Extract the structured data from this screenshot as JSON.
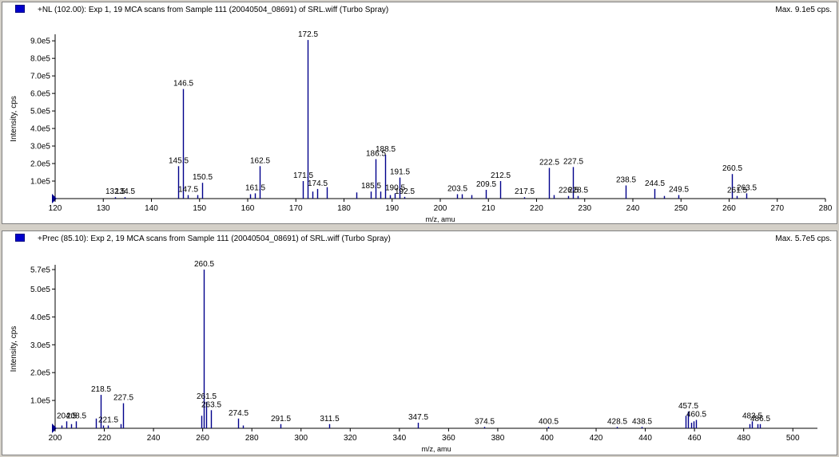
{
  "panels": [
    {
      "title": "+NL (102.00): Exp 1, 19 MCA scans from Sample 111 (20040504_08691) of SRL.wiff (Turbo Spray)",
      "max_label": "Max. 9.1e5 cps."
    },
    {
      "title": "+Prec (85.10): Exp 2, 19 MCA scans from Sample 111 (20040504_08691) of SRL.wiff (Turbo Spray)",
      "max_label": "Max. 5.7e5 cps."
    }
  ],
  "colors": {
    "series": "#00008b",
    "window_bg": "#d4d0c8"
  },
  "chart_data": [
    {
      "type": "bar",
      "xlabel": "m/z, amu",
      "ylabel": "Intensity, cps",
      "xlim": [
        120,
        280
      ],
      "ylim": [
        0,
        910000
      ],
      "xticks": [
        "120",
        "130",
        "140",
        "150",
        "160",
        "170",
        "180",
        "190",
        "200",
        "210",
        "220",
        "230",
        "240",
        "250",
        "260",
        "270",
        "280"
      ],
      "yticks": [
        "1.0e5",
        "2.0e5",
        "3.0e5",
        "4.0e5",
        "5.0e5",
        "6.0e5",
        "7.0e5",
        "8.0e5",
        "9.0e5"
      ],
      "peaks": [
        {
          "x": 132.5,
          "y": 8000,
          "label": "132.5"
        },
        {
          "x": 134.5,
          "y": 8000,
          "label": "134.5"
        },
        {
          "x": 145.5,
          "y": 185000,
          "label": "145.5"
        },
        {
          "x": 146.5,
          "y": 625000,
          "label": "146.5"
        },
        {
          "x": 147.5,
          "y": 20000,
          "label": "147.5"
        },
        {
          "x": 149.5,
          "y": 20000,
          "label": ""
        },
        {
          "x": 150.5,
          "y": 90000,
          "label": "150.5"
        },
        {
          "x": 160.5,
          "y": 25000,
          "label": ""
        },
        {
          "x": 161.5,
          "y": 30000,
          "label": "161.5"
        },
        {
          "x": 162.5,
          "y": 185000,
          "label": "162.5"
        },
        {
          "x": 171.5,
          "y": 100000,
          "label": "171.5"
        },
        {
          "x": 172.5,
          "y": 905000,
          "label": "172.5"
        },
        {
          "x": 173.5,
          "y": 40000,
          "label": ""
        },
        {
          "x": 174.5,
          "y": 55000,
          "label": "174.5"
        },
        {
          "x": 176.5,
          "y": 65000,
          "label": ""
        },
        {
          "x": 182.5,
          "y": 35000,
          "label": ""
        },
        {
          "x": 185.5,
          "y": 40000,
          "label": "185.5"
        },
        {
          "x": 186.5,
          "y": 225000,
          "label": "186.5"
        },
        {
          "x": 187.5,
          "y": 40000,
          "label": ""
        },
        {
          "x": 188.5,
          "y": 250000,
          "label": "188.5"
        },
        {
          "x": 189.5,
          "y": 20000,
          "label": ""
        },
        {
          "x": 190.5,
          "y": 30000,
          "label": "190.5"
        },
        {
          "x": 191.5,
          "y": 120000,
          "label": "191.5"
        },
        {
          "x": 192.5,
          "y": 10000,
          "label": "192.5"
        },
        {
          "x": 203.5,
          "y": 25000,
          "label": "203.5"
        },
        {
          "x": 204.5,
          "y": 25000,
          "label": ""
        },
        {
          "x": 206.5,
          "y": 20000,
          "label": ""
        },
        {
          "x": 209.5,
          "y": 50000,
          "label": "209.5"
        },
        {
          "x": 212.5,
          "y": 100000,
          "label": "212.5"
        },
        {
          "x": 217.5,
          "y": 8000,
          "label": "217.5"
        },
        {
          "x": 222.5,
          "y": 175000,
          "label": "222.5"
        },
        {
          "x": 223.5,
          "y": 20000,
          "label": ""
        },
        {
          "x": 226.5,
          "y": 15000,
          "label": "226.5"
        },
        {
          "x": 227.5,
          "y": 180000,
          "label": "227.5"
        },
        {
          "x": 228.5,
          "y": 15000,
          "label": "228.5"
        },
        {
          "x": 238.5,
          "y": 75000,
          "label": "238.5"
        },
        {
          "x": 244.5,
          "y": 55000,
          "label": "244.5"
        },
        {
          "x": 246.5,
          "y": 15000,
          "label": ""
        },
        {
          "x": 249.5,
          "y": 20000,
          "label": "249.5"
        },
        {
          "x": 260.5,
          "y": 140000,
          "label": "260.5"
        },
        {
          "x": 261.5,
          "y": 15000,
          "label": "261.5"
        },
        {
          "x": 263.5,
          "y": 30000,
          "label": "263.5"
        }
      ]
    },
    {
      "type": "bar",
      "xlabel": "m/z, amu",
      "ylabel": "Intensity, cps",
      "xlim": [
        200,
        510
      ],
      "ylim": [
        0,
        570000
      ],
      "xticks": [
        "200",
        "220",
        "240",
        "260",
        "280",
        "300",
        "320",
        "340",
        "360",
        "380",
        "400",
        "420",
        "440",
        "460",
        "480",
        "500"
      ],
      "yticks": [
        "1.0e5",
        "2.0e5",
        "3.0e5",
        "4.0e5",
        "5.0e5",
        "5.7e5"
      ],
      "peaks": [
        {
          "x": 202.5,
          "y": 10000,
          "label": ""
        },
        {
          "x": 204.5,
          "y": 25000,
          "label": "204.5"
        },
        {
          "x": 206.5,
          "y": 15000,
          "label": ""
        },
        {
          "x": 208.5,
          "y": 25000,
          "label": "208.5"
        },
        {
          "x": 216.5,
          "y": 35000,
          "label": ""
        },
        {
          "x": 218.5,
          "y": 120000,
          "label": "218.5"
        },
        {
          "x": 219.5,
          "y": 10000,
          "label": ""
        },
        {
          "x": 221.5,
          "y": 10000,
          "label": "221.5"
        },
        {
          "x": 226.5,
          "y": 15000,
          "label": ""
        },
        {
          "x": 227.5,
          "y": 90000,
          "label": "227.5"
        },
        {
          "x": 259.5,
          "y": 45000,
          "label": ""
        },
        {
          "x": 260.5,
          "y": 570000,
          "label": "260.5"
        },
        {
          "x": 261.5,
          "y": 95000,
          "label": "261.5"
        },
        {
          "x": 263.5,
          "y": 65000,
          "label": "263.5"
        },
        {
          "x": 274.5,
          "y": 35000,
          "label": "274.5"
        },
        {
          "x": 276.5,
          "y": 10000,
          "label": ""
        },
        {
          "x": 291.5,
          "y": 15000,
          "label": "291.5"
        },
        {
          "x": 311.5,
          "y": 15000,
          "label": "311.5"
        },
        {
          "x": 347.5,
          "y": 20000,
          "label": "347.5"
        },
        {
          "x": 374.5,
          "y": 5000,
          "label": "374.5"
        },
        {
          "x": 400.5,
          "y": 5000,
          "label": "400.5"
        },
        {
          "x": 428.5,
          "y": 5000,
          "label": "428.5"
        },
        {
          "x": 438.5,
          "y": 5000,
          "label": "438.5"
        },
        {
          "x": 456.5,
          "y": 45000,
          "label": ""
        },
        {
          "x": 457.5,
          "y": 60000,
          "label": "457.5"
        },
        {
          "x": 458.5,
          "y": 20000,
          "label": ""
        },
        {
          "x": 459.5,
          "y": 25000,
          "label": ""
        },
        {
          "x": 460.5,
          "y": 30000,
          "label": "460.5"
        },
        {
          "x": 482.5,
          "y": 15000,
          "label": ""
        },
        {
          "x": 483.5,
          "y": 25000,
          "label": "483.5"
        },
        {
          "x": 485.5,
          "y": 15000,
          "label": ""
        },
        {
          "x": 486.5,
          "y": 15000,
          "label": "486.5"
        }
      ]
    }
  ]
}
